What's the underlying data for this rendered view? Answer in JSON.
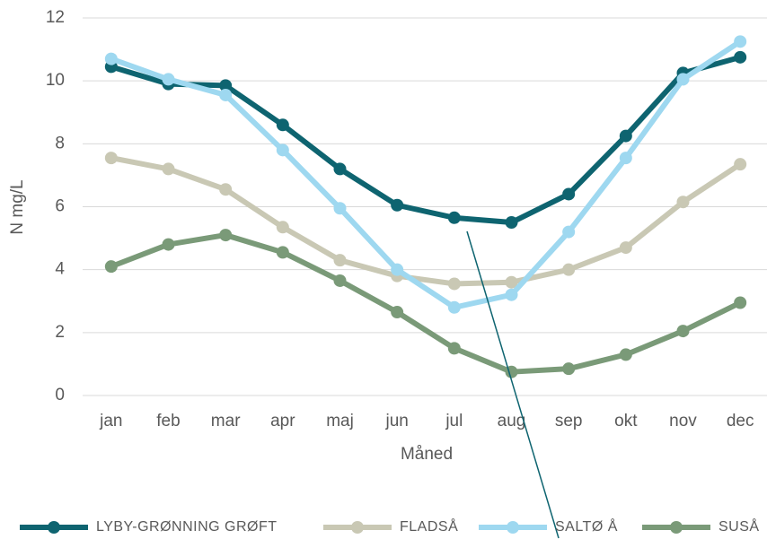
{
  "chart_data": {
    "type": "line",
    "x_label": "Måned",
    "y_label": "N mg/L",
    "categories": [
      "jan",
      "feb",
      "mar",
      "apr",
      "maj",
      "jun",
      "jul",
      "aug",
      "sep",
      "okt",
      "nov",
      "dec"
    ],
    "series": [
      {
        "name": "LYBY-GRØNNING GRØFT",
        "color": "#0e6470",
        "values": [
          10.45,
          9.9,
          9.85,
          8.6,
          7.2,
          6.05,
          5.65,
          5.5,
          6.4,
          8.25,
          10.25,
          10.75
        ]
      },
      {
        "name": "FLADSÅ",
        "color": "#c9c8b4",
        "values": [
          7.55,
          7.2,
          6.55,
          5.35,
          4.3,
          3.8,
          3.55,
          3.6,
          4.0,
          4.7,
          6.15,
          7.35
        ]
      },
      {
        "name": "SALTØ Å",
        "color": "#9ed8f0",
        "values": [
          10.7,
          10.05,
          9.55,
          7.8,
          5.95,
          4.0,
          2.8,
          3.2,
          5.2,
          7.55,
          10.05,
          11.25
        ]
      },
      {
        "name": "SUSÅ",
        "color": "#7a9a78",
        "values": [
          4.1,
          4.8,
          5.1,
          4.55,
          3.65,
          2.65,
          1.5,
          0.75,
          0.85,
          1.3,
          2.05,
          2.95
        ]
      }
    ],
    "ylim": [
      0,
      12
    ],
    "yticks": [
      0,
      2,
      4,
      6,
      8,
      10,
      12
    ],
    "grid": true,
    "legend": "bottom"
  }
}
